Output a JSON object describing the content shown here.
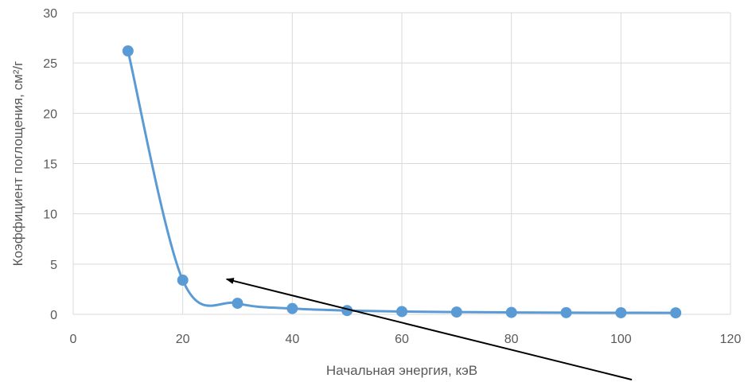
{
  "chart_data": {
    "type": "line",
    "xlabel": "Начальная энергия, кэВ",
    "ylabel": "Коэффициент поглощения, см²/г",
    "xlim": [
      0,
      120
    ],
    "ylim": [
      0,
      30
    ],
    "x_ticks": [
      0,
      20,
      40,
      60,
      80,
      100,
      120
    ],
    "y_ticks": [
      0,
      5,
      10,
      15,
      20,
      25,
      30
    ],
    "grid": true,
    "legend": "none",
    "smooth": true,
    "series": [
      {
        "x": [
          10,
          20,
          30,
          40,
          50,
          60,
          70,
          80,
          90,
          100,
          110
        ],
        "y": [
          26.2,
          3.4,
          1.1,
          0.58,
          0.38,
          0.28,
          0.23,
          0.19,
          0.17,
          0.16,
          0.15
        ],
        "color": "#5b9bd5"
      }
    ],
    "annotations": [
      {
        "type": "arrow",
        "from": [
          102,
          -6.5
        ],
        "to": [
          28,
          3.5
        ],
        "color": "#000000"
      }
    ]
  }
}
